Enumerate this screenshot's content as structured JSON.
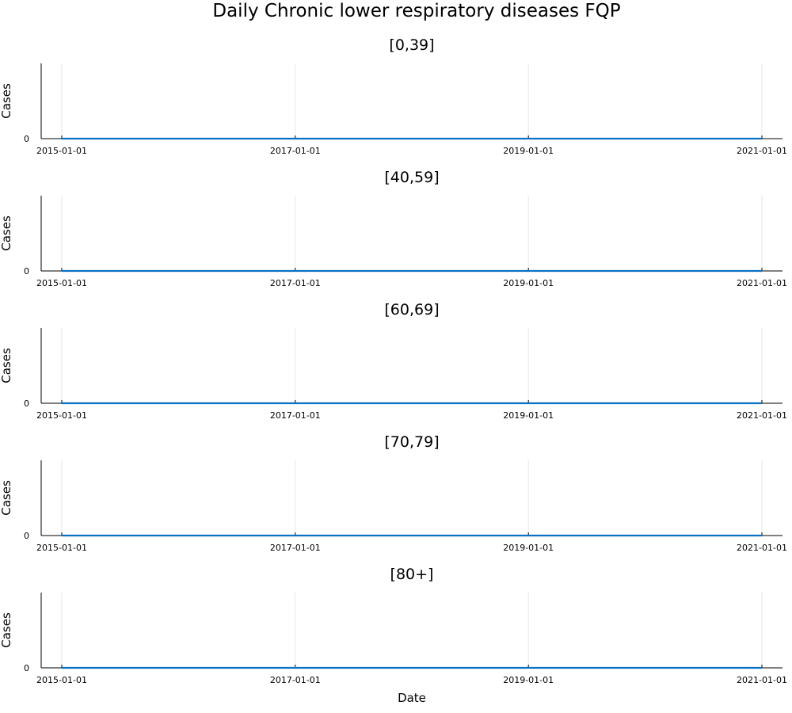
{
  "chart_data": {
    "type": "line",
    "title": "Daily Chronic lower respiratory diseases FQP",
    "xlabel": "Date",
    "ylabel": "Cases",
    "x_range": [
      "2015-01-01",
      "2021-01-01"
    ],
    "x_ticks": [
      "2015-01-01",
      "2017-01-01",
      "2019-01-01",
      "2021-01-01"
    ],
    "y_ticks": [
      "0"
    ],
    "ylim": [
      0,
      1
    ],
    "grid": true,
    "line_color": "#0a72c4",
    "panels": [
      {
        "title": "[0,39]",
        "series": [
          {
            "x": [
              "2015-01-01",
              "2021-01-01"
            ],
            "y": [
              0,
              0
            ]
          }
        ]
      },
      {
        "title": "[40,59]",
        "series": [
          {
            "x": [
              "2015-01-01",
              "2021-01-01"
            ],
            "y": [
              0,
              0
            ]
          }
        ]
      },
      {
        "title": "[60,69]",
        "series": [
          {
            "x": [
              "2015-01-01",
              "2021-01-01"
            ],
            "y": [
              0,
              0
            ]
          }
        ]
      },
      {
        "title": "[70,79]",
        "series": [
          {
            "x": [
              "2015-01-01",
              "2021-01-01"
            ],
            "y": [
              0,
              0
            ]
          }
        ]
      },
      {
        "title": "[80+]",
        "series": [
          {
            "x": [
              "2015-01-01",
              "2021-01-01"
            ],
            "y": [
              0,
              0
            ]
          }
        ]
      }
    ]
  }
}
